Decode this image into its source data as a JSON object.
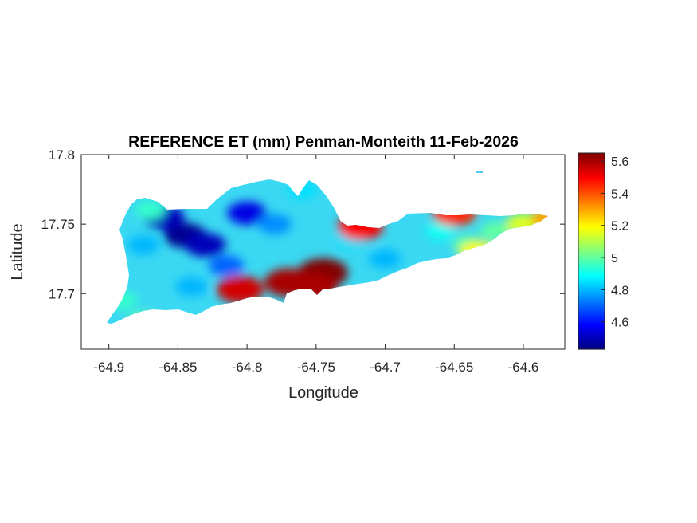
{
  "title": "REFERENCE ET (mm) Penman-Monteith 11-Feb-2026",
  "xlabel": "Longitude",
  "ylabel": "Latitude",
  "x_ticks": [
    "-64.9",
    "-64.85",
    "-64.8",
    "-64.75",
    "-64.7",
    "-64.65",
    "-64.6"
  ],
  "y_ticks": [
    "17.8",
    "17.75",
    "17.7"
  ],
  "colorbar_ticks": [
    "5.6",
    "5.4",
    "5.2",
    "5",
    "4.8",
    "4.6"
  ],
  "colormap": "jet",
  "chart_data": {
    "type": "heatmap",
    "title": "REFERENCE ET (mm) Penman-Monteith 11-Feb-2026",
    "xlabel": "Longitude",
    "ylabel": "Latitude",
    "xlim": [
      -64.92,
      -64.57
    ],
    "ylim": [
      17.66,
      17.8
    ],
    "clim": [
      4.43,
      5.65
    ],
    "colormap": "jet",
    "grid": false,
    "field_samples": [
      {
        "lon": -64.845,
        "lat": 17.742,
        "value": 4.45
      },
      {
        "lon": -64.86,
        "lat": 17.755,
        "value": 4.5
      },
      {
        "lon": -64.83,
        "lat": 17.735,
        "value": 4.5
      },
      {
        "lon": -64.8,
        "lat": 17.758,
        "value": 4.55
      },
      {
        "lon": -64.815,
        "lat": 17.72,
        "value": 4.7
      },
      {
        "lon": -64.78,
        "lat": 17.75,
        "value": 4.75
      },
      {
        "lon": -64.875,
        "lat": 17.735,
        "value": 4.8
      },
      {
        "lon": -64.84,
        "lat": 17.705,
        "value": 4.8
      },
      {
        "lon": -64.76,
        "lat": 17.775,
        "value": 4.85
      },
      {
        "lon": -64.725,
        "lat": 17.74,
        "value": 4.85
      },
      {
        "lon": -64.7,
        "lat": 17.725,
        "value": 4.8
      },
      {
        "lon": -64.66,
        "lat": 17.745,
        "value": 4.9
      },
      {
        "lon": -64.89,
        "lat": 17.695,
        "value": 4.95
      },
      {
        "lon": -64.64,
        "lat": 17.735,
        "value": 5.0
      },
      {
        "lon": -64.62,
        "lat": 17.745,
        "value": 5.0
      },
      {
        "lon": -64.6,
        "lat": 17.75,
        "value": 5.15
      },
      {
        "lon": -64.58,
        "lat": 17.754,
        "value": 5.3
      },
      {
        "lon": -64.65,
        "lat": 17.758,
        "value": 5.45
      },
      {
        "lon": -64.633,
        "lat": 17.73,
        "value": 5.2
      },
      {
        "lon": -64.745,
        "lat": 17.715,
        "value": 5.65
      },
      {
        "lon": -64.752,
        "lat": 17.705,
        "value": 5.6
      },
      {
        "lon": -64.77,
        "lat": 17.708,
        "value": 5.6
      },
      {
        "lon": -64.805,
        "lat": 17.703,
        "value": 5.55
      },
      {
        "lon": -64.718,
        "lat": 17.748,
        "value": 5.5
      },
      {
        "lon": -64.875,
        "lat": 17.68,
        "value": 5.0
      },
      {
        "lon": -64.87,
        "lat": 17.76,
        "value": 4.95
      }
    ]
  }
}
